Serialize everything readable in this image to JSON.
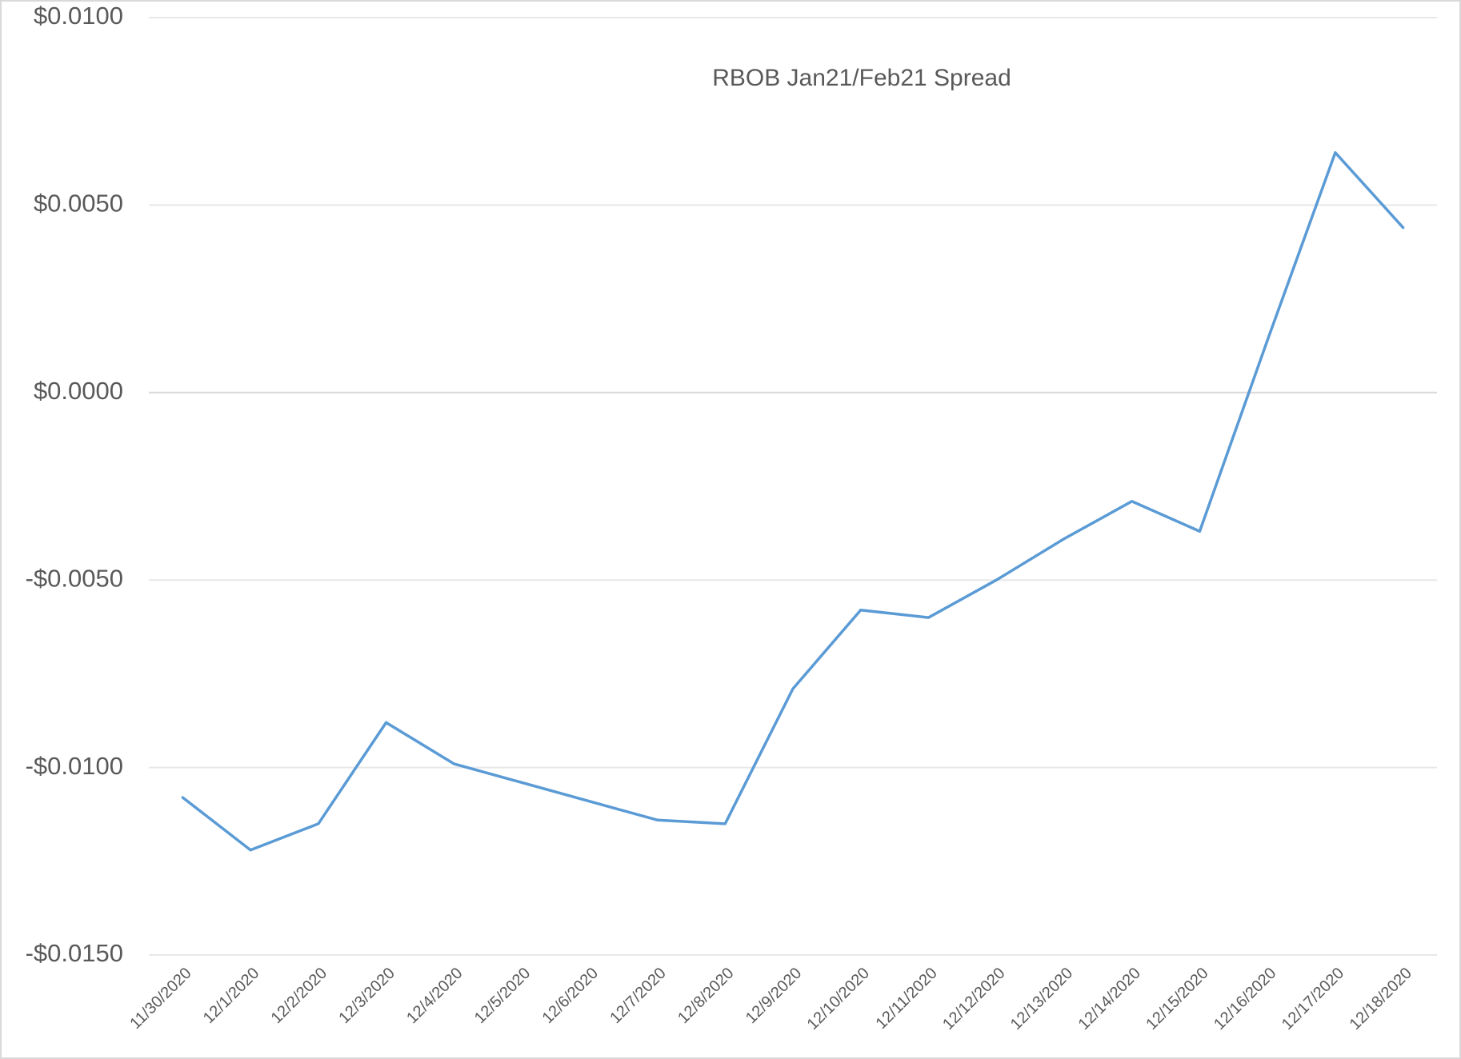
{
  "chart_data": {
    "type": "line",
    "title": "RBOB Jan21/Feb21 Spread",
    "categories": [
      "11/30/2020",
      "12/1/2020",
      "12/2/2020",
      "12/3/2020",
      "12/4/2020",
      "12/5/2020",
      "12/6/2020",
      "12/7/2020",
      "12/8/2020",
      "12/9/2020",
      "12/10/2020",
      "12/11/2020",
      "12/12/2020",
      "12/13/2020",
      "12/14/2020",
      "12/15/2020",
      "12/16/2020",
      "12/17/2020",
      "12/18/2020"
    ],
    "values": [
      -0.0108,
      -0.0122,
      -0.0115,
      -0.0088,
      -0.0099,
      -0.0104,
      -0.0109,
      -0.0114,
      -0.0115,
      -0.0079,
      -0.0058,
      -0.006,
      -0.005,
      -0.0039,
      -0.0029,
      -0.0037,
      0.0014,
      0.0064,
      0.0044
    ],
    "color": "#5b9bd5",
    "ylim": [
      -0.015,
      0.01
    ],
    "yticks": [
      {
        "value": -0.015,
        "label": "-$0.0150"
      },
      {
        "value": -0.01,
        "label": "-$0.0100"
      },
      {
        "value": -0.005,
        "label": "-$0.0050"
      },
      {
        "value": 0,
        "label": "$0.0000"
      },
      {
        "value": 0.005,
        "label": "$0.0050"
      },
      {
        "value": 0.01,
        "label": "$0.0100"
      }
    ],
    "grid": true
  }
}
